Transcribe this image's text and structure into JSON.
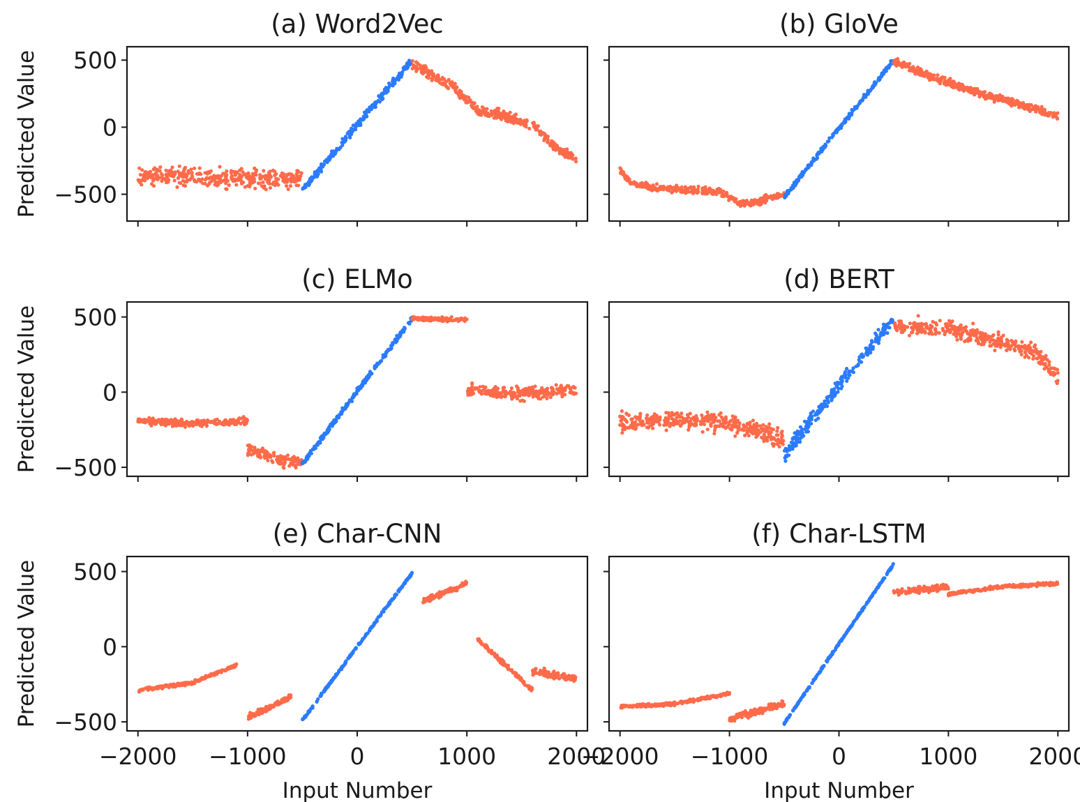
{
  "figure": {
    "xlabel": "Input Number",
    "ylabel": "Predicted Value",
    "colors": {
      "in_range": "#2b7bff",
      "out_of_range": "#ff6b4a",
      "axes": "#1a1a1a"
    }
  },
  "chart_data": [
    {
      "type": "scatter",
      "title": "(a) Word2Vec",
      "xlabel": "",
      "ylabel": "Predicted Value",
      "xlim": [
        -2000,
        2000
      ],
      "ylim": [
        -700,
        600
      ],
      "xticks": [
        "−2000",
        "−1000",
        "0",
        "1000",
        "2000"
      ],
      "yticks": [
        "−500",
        "0",
        "500"
      ],
      "show_xticklabels": false,
      "show_yticklabels": true,
      "series": [
        {
          "color": "#ff6b4a",
          "x": [
            -2000,
            -1500,
            -1000,
            -500
          ],
          "y": [
            -360,
            -370,
            -380,
            -390
          ],
          "noise": 100
        },
        {
          "color": "#2b7bff",
          "x": [
            -500,
            500
          ],
          "y": [
            -470,
            500
          ],
          "noise": 40
        },
        {
          "color": "#ff6b4a",
          "x": [
            500,
            700,
            900,
            1100,
            1300,
            1600,
            1800,
            2000
          ],
          "y": [
            470,
            380,
            280,
            120,
            90,
            20,
            -150,
            -240
          ],
          "noise": 55
        }
      ]
    },
    {
      "type": "scatter",
      "title": "(b) GloVe",
      "xlabel": "",
      "ylabel": "",
      "xlim": [
        -2000,
        2000
      ],
      "ylim": [
        -700,
        600
      ],
      "xticks": [
        "−2000",
        "−1000",
        "0",
        "1000",
        "2000"
      ],
      "yticks": [
        "−500",
        "0",
        "500"
      ],
      "show_xticklabels": false,
      "show_yticklabels": false,
      "series": [
        {
          "color": "#ff6b4a",
          "x": [
            -2000,
            -1900,
            -1700,
            -1400,
            -1100,
            -900,
            -800,
            -500
          ],
          "y": [
            -320,
            -420,
            -450,
            -470,
            -480,
            -570,
            -560,
            -500
          ],
          "noise": 40
        },
        {
          "color": "#2b7bff",
          "x": [
            -500,
            500
          ],
          "y": [
            -520,
            500
          ],
          "noise": 25
        },
        {
          "color": "#ff6b4a",
          "x": [
            500,
            900,
            1300,
            1700,
            2000
          ],
          "y": [
            490,
            360,
            250,
            160,
            80
          ],
          "noise": 40
        }
      ]
    },
    {
      "type": "scatter",
      "title": "(c) ELMo",
      "xlabel": "",
      "ylabel": "Predicted Value",
      "xlim": [
        -2000,
        2000
      ],
      "ylim": [
        -560,
        600
      ],
      "xticks": [
        "−2000",
        "−1000",
        "0",
        "1000",
        "2000"
      ],
      "yticks": [
        "−500",
        "0",
        "500"
      ],
      "show_xticklabels": false,
      "show_yticklabels": true,
      "series": [
        {
          "color": "#ff6b4a",
          "x": [
            -2000,
            -1500,
            -1000
          ],
          "y": [
            -190,
            -210,
            -190
          ],
          "noise": 35
        },
        {
          "color": "#ff6b4a",
          "x": [
            -1000,
            -700,
            -500
          ],
          "y": [
            -380,
            -450,
            -470
          ],
          "noise": 60
        },
        {
          "color": "#2b7bff",
          "x": [
            -500,
            500
          ],
          "y": [
            -480,
            490
          ],
          "noise": 25
        },
        {
          "color": "#ff6b4a",
          "x": [
            500,
            1000
          ],
          "y": [
            490,
            480
          ],
          "noise": 20
        },
        {
          "color": "#ff6b4a",
          "x": [
            1000,
            1500,
            2000
          ],
          "y": [
            10,
            -10,
            20
          ],
          "noise": 60
        }
      ]
    },
    {
      "type": "scatter",
      "title": "(d) BERT",
      "xlabel": "",
      "ylabel": "",
      "xlim": [
        -2000,
        2000
      ],
      "ylim": [
        -560,
        600
      ],
      "xticks": [
        "−2000",
        "−1000",
        "0",
        "1000",
        "2000"
      ],
      "yticks": [
        "−500",
        "0",
        "500"
      ],
      "show_xticklabels": false,
      "show_yticklabels": false,
      "series": [
        {
          "color": "#ff6b4a",
          "x": [
            -2000,
            -1500,
            -1000,
            -500
          ],
          "y": [
            -200,
            -190,
            -200,
            -320
          ],
          "noise": 85
        },
        {
          "color": "#2b7bff",
          "x": [
            -500,
            0,
            500
          ],
          "y": [
            -420,
            50,
            480
          ],
          "noise": 70
        },
        {
          "color": "#ff6b4a",
          "x": [
            500,
            1000,
            1500,
            1800,
            2000
          ],
          "y": [
            440,
            420,
            330,
            270,
            100
          ],
          "noise": 80
        }
      ]
    },
    {
      "type": "scatter",
      "title": "(e) Char-CNN",
      "xlabel": "Input Number",
      "ylabel": "Predicted Value",
      "xlim": [
        -2000,
        2000
      ],
      "ylim": [
        -560,
        600
      ],
      "xticks": [
        "−2000",
        "−1000",
        "0",
        "1000",
        "2000"
      ],
      "yticks": [
        "−500",
        "0",
        "500"
      ],
      "show_xticklabels": true,
      "show_yticklabels": true,
      "series": [
        {
          "color": "#ff6b4a",
          "x": [
            -2000,
            -1500,
            -1100
          ],
          "y": [
            -290,
            -240,
            -120
          ],
          "noise": 15
        },
        {
          "color": "#ff6b4a",
          "x": [
            -1000,
            -600
          ],
          "y": [
            -470,
            -330
          ],
          "noise": 25
        },
        {
          "color": "#2b7bff",
          "x": [
            -500,
            500
          ],
          "y": [
            -490,
            490
          ],
          "noise": 12
        },
        {
          "color": "#ff6b4a",
          "x": [
            600,
            1000
          ],
          "y": [
            300,
            420
          ],
          "noise": 25
        },
        {
          "color": "#ff6b4a",
          "x": [
            1100,
            1600
          ],
          "y": [
            50,
            -290
          ],
          "noise": 20
        },
        {
          "color": "#ff6b4a",
          "x": [
            1600,
            2000
          ],
          "y": [
            -160,
            -220
          ],
          "noise": 40
        }
      ]
    },
    {
      "type": "scatter",
      "title": "(f) Char-LSTM",
      "xlabel": "Input Number",
      "ylabel": "",
      "xlim": [
        -2000,
        2000
      ],
      "ylim": [
        -560,
        600
      ],
      "xticks": [
        "−2000",
        "−1000",
        "0",
        "1000",
        "2000"
      ],
      "yticks": [
        "−500",
        "0",
        "500"
      ],
      "show_xticklabels": true,
      "show_yticklabels": false,
      "series": [
        {
          "color": "#ff6b4a",
          "x": [
            -2000,
            -1500,
            -1000
          ],
          "y": [
            -400,
            -380,
            -310
          ],
          "noise": 15
        },
        {
          "color": "#ff6b4a",
          "x": [
            -1000,
            -500
          ],
          "y": [
            -480,
            -380
          ],
          "noise": 30
        },
        {
          "color": "#2b7bff",
          "x": [
            -500,
            500
          ],
          "y": [
            -510,
            550
          ],
          "noise": 10
        },
        {
          "color": "#ff6b4a",
          "x": [
            500,
            1000
          ],
          "y": [
            360,
            400
          ],
          "noise": 30
        },
        {
          "color": "#ff6b4a",
          "x": [
            1000,
            1500,
            2000
          ],
          "y": [
            350,
            400,
            420
          ],
          "noise": 15
        }
      ]
    }
  ]
}
